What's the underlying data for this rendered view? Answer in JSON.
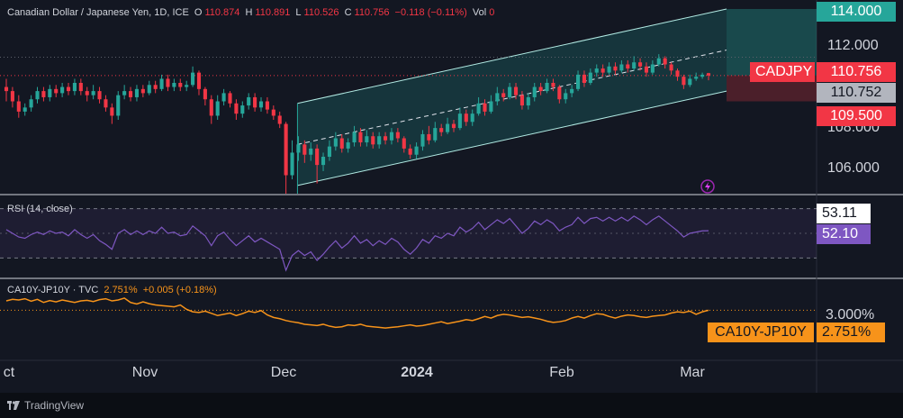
{
  "header": {
    "symbol": "Canadian Dollar / Japanese Yen, 1D, ICE",
    "o_label": "O",
    "o": "110.874",
    "h_label": "H",
    "h": "110.891",
    "l_label": "L",
    "l": "110.526",
    "c_label": "C",
    "c": "110.756",
    "change": "−0.118 (−0.11%)",
    "vol_label": "Vol",
    "vol": "0"
  },
  "rsi_header": {
    "label": "RSI (14, close)"
  },
  "spread_header": {
    "label": "CA10Y-JP10Y · TVC",
    "value": "2.751%",
    "change": "+0.005 (+0.18%)"
  },
  "price_axis": [
    "106.000",
    "108.000",
    "112.000",
    "114.000"
  ],
  "price_tags": {
    "top": "114.000",
    "symbol": "CADJPY",
    "last": "110.756",
    "grey": "110.752",
    "low": "109.500"
  },
  "rsi_tags": {
    "upper": "53.11",
    "value": "52.10"
  },
  "spread_tags": {
    "axis": "3.000%",
    "symbol": "CA10Y-JP10Y",
    "value": "2.751%"
  },
  "x_axis": [
    "ct",
    "Nov",
    "Dec",
    "2024",
    "Feb",
    "Mar"
  ],
  "footer": {
    "brand": "TradingView"
  },
  "colors": {
    "up": "#26a69a",
    "down": "#f23645",
    "rsi": "#7e57c2",
    "spread": "#f7931a",
    "channel": "#26a69a"
  },
  "chart_data": {
    "type": "candlestick",
    "panes": [
      {
        "name": "CADJPY",
        "ylim": [
          105.0,
          114.0
        ],
        "candles": [
          [
            110.2,
            110.0,
            110.6,
            109.5
          ],
          [
            110.0,
            109.5,
            110.2,
            109.2
          ],
          [
            109.5,
            109.0,
            109.8,
            108.7
          ],
          [
            109.0,
            109.2,
            109.4,
            108.8
          ],
          [
            109.2,
            109.6,
            109.8,
            109.0
          ],
          [
            109.6,
            110.0,
            110.2,
            109.4
          ],
          [
            110.0,
            109.7,
            110.2,
            109.5
          ],
          [
            109.7,
            110.1,
            110.3,
            109.5
          ],
          [
            110.1,
            109.9,
            110.3,
            109.7
          ],
          [
            109.9,
            110.2,
            110.4,
            109.7
          ],
          [
            110.2,
            110.0,
            110.4,
            109.8
          ],
          [
            110.0,
            110.4,
            110.6,
            109.8
          ],
          [
            110.4,
            110.0,
            110.6,
            109.8
          ],
          [
            110.0,
            109.8,
            110.2,
            109.5
          ],
          [
            109.8,
            110.0,
            110.3,
            109.6
          ],
          [
            110.0,
            109.6,
            110.2,
            109.4
          ],
          [
            109.6,
            109.2,
            109.8,
            109.0
          ],
          [
            109.2,
            108.8,
            109.4,
            108.4
          ],
          [
            108.8,
            109.8,
            110.0,
            108.6
          ],
          [
            109.8,
            110.0,
            110.3,
            109.6
          ],
          [
            110.0,
            109.7,
            110.2,
            109.5
          ],
          [
            109.7,
            110.1,
            110.3,
            109.5
          ],
          [
            110.1,
            109.9,
            110.3,
            109.7
          ],
          [
            109.9,
            110.3,
            110.5,
            109.8
          ],
          [
            110.3,
            110.1,
            110.5,
            109.9
          ],
          [
            110.1,
            110.6,
            110.8,
            110.0
          ],
          [
            110.6,
            110.2,
            110.8,
            110.0
          ],
          [
            110.2,
            110.4,
            110.6,
            110.0
          ],
          [
            110.4,
            110.2,
            110.6,
            110.0
          ],
          [
            110.2,
            110.3,
            110.5,
            110.0
          ],
          [
            110.3,
            110.9,
            111.2,
            110.2
          ],
          [
            110.9,
            110.1,
            111.0,
            109.8
          ],
          [
            110.1,
            109.6,
            110.2,
            109.3
          ],
          [
            109.6,
            108.8,
            109.8,
            108.4
          ],
          [
            108.8,
            109.5,
            109.8,
            108.6
          ],
          [
            109.5,
            109.9,
            110.1,
            109.3
          ],
          [
            109.9,
            109.4,
            110.0,
            109.2
          ],
          [
            109.4,
            108.9,
            109.6,
            108.6
          ],
          [
            108.9,
            109.3,
            109.5,
            108.7
          ],
          [
            109.3,
            109.7,
            109.9,
            109.1
          ],
          [
            109.7,
            109.2,
            109.9,
            109.0
          ],
          [
            109.2,
            109.5,
            109.7,
            109.0
          ],
          [
            109.5,
            109.1,
            109.7,
            108.9
          ],
          [
            109.1,
            108.8,
            109.3,
            108.6
          ],
          [
            108.8,
            108.4,
            109.0,
            108.2
          ],
          [
            108.4,
            105.9,
            108.5,
            105.0
          ],
          [
            105.9,
            107.0,
            107.6,
            105.7
          ],
          [
            107.0,
            107.4,
            107.8,
            106.6
          ],
          [
            107.4,
            106.9,
            107.6,
            106.5
          ],
          [
            106.9,
            107.2,
            107.5,
            106.6
          ],
          [
            107.2,
            106.4,
            107.4,
            105.5
          ],
          [
            106.4,
            106.8,
            107.0,
            106.1
          ],
          [
            106.8,
            107.3,
            107.6,
            106.6
          ],
          [
            107.3,
            107.7,
            108.0,
            107.1
          ],
          [
            107.7,
            107.2,
            107.9,
            107.0
          ],
          [
            107.2,
            107.5,
            107.7,
            107.0
          ],
          [
            107.5,
            108.0,
            108.3,
            107.3
          ],
          [
            108.0,
            107.5,
            108.2,
            107.3
          ],
          [
            107.5,
            107.8,
            108.1,
            107.3
          ],
          [
            107.8,
            107.4,
            108.0,
            107.2
          ],
          [
            107.4,
            107.8,
            108.0,
            107.2
          ],
          [
            107.8,
            107.6,
            108.0,
            107.4
          ],
          [
            107.6,
            108.0,
            108.2,
            107.4
          ],
          [
            108.0,
            107.7,
            108.2,
            107.5
          ],
          [
            107.7,
            107.2,
            107.8,
            107.0
          ],
          [
            107.2,
            106.9,
            107.4,
            106.7
          ],
          [
            106.9,
            107.3,
            107.5,
            106.7
          ],
          [
            107.3,
            107.9,
            108.1,
            107.1
          ],
          [
            107.9,
            107.6,
            108.3,
            107.4
          ],
          [
            107.6,
            108.2,
            108.5,
            107.5
          ],
          [
            108.2,
            108.0,
            108.4,
            107.8
          ],
          [
            108.0,
            108.4,
            108.7,
            107.9
          ],
          [
            108.4,
            108.2,
            108.6,
            108.0
          ],
          [
            108.2,
            108.9,
            109.2,
            108.1
          ],
          [
            108.9,
            108.5,
            109.1,
            108.3
          ],
          [
            108.5,
            108.9,
            109.1,
            108.3
          ],
          [
            108.9,
            109.4,
            109.7,
            108.8
          ],
          [
            109.4,
            109.0,
            109.6,
            108.8
          ],
          [
            109.0,
            109.5,
            109.8,
            108.9
          ],
          [
            109.5,
            109.9,
            110.2,
            109.3
          ],
          [
            109.9,
            109.7,
            110.1,
            109.5
          ],
          [
            109.7,
            110.2,
            110.4,
            109.6
          ],
          [
            110.2,
            109.8,
            110.4,
            109.6
          ],
          [
            109.8,
            109.3,
            110.0,
            109.1
          ],
          [
            109.3,
            109.7,
            109.9,
            109.1
          ],
          [
            109.7,
            110.2,
            110.4,
            109.5
          ],
          [
            110.2,
            110.0,
            110.4,
            109.8
          ],
          [
            110.0,
            110.4,
            110.6,
            109.9
          ],
          [
            110.4,
            110.2,
            110.6,
            110.0
          ],
          [
            110.2,
            109.6,
            110.3,
            109.4
          ],
          [
            109.6,
            109.9,
            110.1,
            109.4
          ],
          [
            109.9,
            110.1,
            110.3,
            109.7
          ],
          [
            110.1,
            110.8,
            111.0,
            110.0
          ],
          [
            110.8,
            110.4,
            111.0,
            110.2
          ],
          [
            110.4,
            110.9,
            111.1,
            110.3
          ],
          [
            110.9,
            111.1,
            111.3,
            110.7
          ],
          [
            111.1,
            110.9,
            111.3,
            110.7
          ],
          [
            110.9,
            111.2,
            111.4,
            110.8
          ],
          [
            111.2,
            111.0,
            111.4,
            110.8
          ],
          [
            111.0,
            111.3,
            111.5,
            110.9
          ],
          [
            111.3,
            111.1,
            111.5,
            110.9
          ],
          [
            111.1,
            111.4,
            111.7,
            111.0
          ],
          [
            111.4,
            111.2,
            111.6,
            111.0
          ],
          [
            111.2,
            110.9,
            111.4,
            110.7
          ],
          [
            110.9,
            111.3,
            111.5,
            110.8
          ],
          [
            111.3,
            111.6,
            111.8,
            111.2
          ],
          [
            111.6,
            111.3,
            111.7,
            111.1
          ],
          [
            111.3,
            111.0,
            111.4,
            110.8
          ],
          [
            111.0,
            110.7,
            111.1,
            110.5
          ],
          [
            110.7,
            110.3,
            110.8,
            110.1
          ],
          [
            110.3,
            110.6,
            110.8,
            110.2
          ],
          [
            110.6,
            110.7,
            110.9,
            110.5
          ],
          [
            110.7,
            110.8,
            110.9,
            110.6
          ],
          [
            110.874,
            110.756,
            110.891,
            110.526
          ]
        ]
      },
      {
        "name": "RSI (14, close)",
        "ylim": [
          20,
          80
        ],
        "values": [
          53,
          50,
          47,
          46,
          49,
          51,
          49,
          52,
          50,
          51,
          48,
          53,
          49,
          46,
          49,
          44,
          41,
          37,
          50,
          53,
          49,
          52,
          49,
          52,
          50,
          55,
          50,
          51,
          48,
          49,
          56,
          52,
          48,
          40,
          48,
          51,
          45,
          40,
          44,
          48,
          43,
          46,
          43,
          40,
          37,
          20,
          32,
          36,
          32,
          35,
          28,
          33,
          39,
          44,
          38,
          42,
          48,
          42,
          45,
          40,
          44,
          41,
          46,
          43,
          37,
          33,
          38,
          45,
          42,
          48,
          46,
          50,
          48,
          55,
          51,
          54,
          59,
          53,
          57,
          61,
          58,
          62,
          56,
          50,
          54,
          60,
          57,
          61,
          58,
          52,
          55,
          57,
          63,
          58,
          62,
          63,
          60,
          63,
          60,
          63,
          60,
          64,
          61,
          57,
          61,
          64,
          60,
          56,
          52,
          47,
          50,
          51,
          52,
          52.1
        ],
        "levels": [
          70,
          30,
          50
        ]
      },
      {
        "name": "CA10Y-JP10Y",
        "ylim": [
          1.2,
          3.6
        ],
        "values": [
          3.05,
          3.1,
          3.08,
          3.12,
          3.04,
          3.1,
          3.0,
          3.06,
          3.02,
          3.08,
          3.04,
          3.0,
          3.05,
          3.07,
          3.03,
          3.09,
          3.12,
          3.05,
          3.08,
          3.14,
          3.0,
          2.95,
          3.02,
          2.96,
          2.92,
          2.9,
          2.88,
          2.86,
          2.92,
          2.78,
          2.7,
          2.68,
          2.72,
          2.65,
          2.58,
          2.62,
          2.66,
          2.58,
          2.64,
          2.72,
          2.68,
          2.74,
          2.6,
          2.52,
          2.48,
          2.42,
          2.38,
          2.35,
          2.3,
          2.28,
          2.26,
          2.3,
          2.24,
          2.2,
          2.22,
          2.28,
          2.26,
          2.3,
          2.24,
          2.22,
          2.2,
          2.18,
          2.2,
          2.22,
          2.25,
          2.28,
          2.24,
          2.26,
          2.3,
          2.34,
          2.38,
          2.32,
          2.36,
          2.4,
          2.45,
          2.42,
          2.48,
          2.55,
          2.5,
          2.58,
          2.62,
          2.6,
          2.56,
          2.52,
          2.54,
          2.5,
          2.46,
          2.4,
          2.36,
          2.38,
          2.42,
          2.5,
          2.55,
          2.5,
          2.58,
          2.64,
          2.62,
          2.55,
          2.5,
          2.56,
          2.6,
          2.58,
          2.54,
          2.52,
          2.56,
          2.58,
          2.6,
          2.66,
          2.7,
          2.68,
          2.72,
          2.62,
          2.7,
          2.751
        ]
      }
    ],
    "overlays": {
      "regression_channel": {
        "from_index": 47,
        "to_index": 113,
        "upper_end": 114.0,
        "mid_end": 112.0,
        "lower_end": 110.0,
        "upper_start": 109.4,
        "mid_start": 107.4,
        "lower_start": 105.4
      }
    }
  }
}
